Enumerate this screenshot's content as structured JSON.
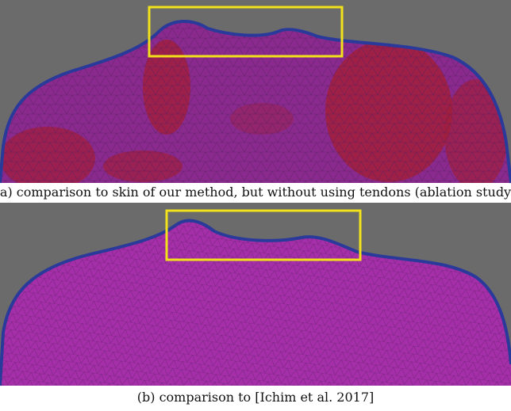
{
  "figure": {
    "panels": [
      {
        "caption": "(a) comparison to skin of our method, but without using tendons (ablation study)"
      },
      {
        "caption": "(b) comparison to [Ichim et al. 2017]"
      }
    ]
  }
}
